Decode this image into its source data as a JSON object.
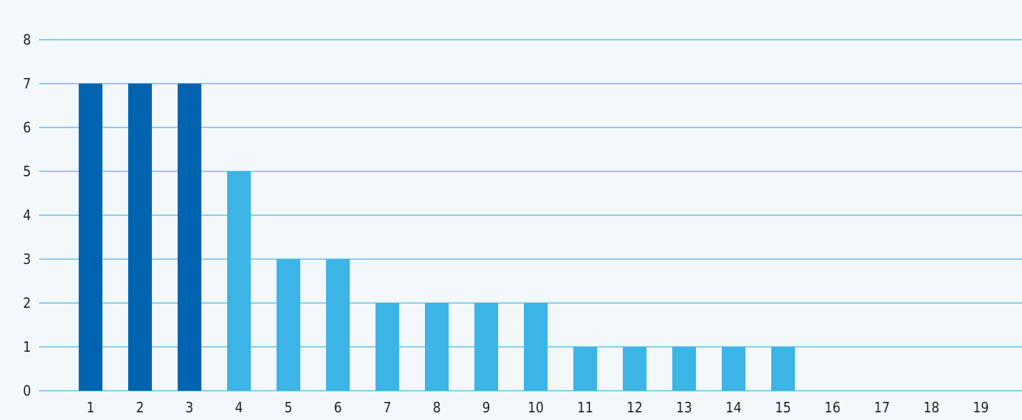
{
  "chart_data": {
    "type": "bar",
    "categories": [
      "1",
      "2",
      "3",
      "4",
      "5",
      "6",
      "7",
      "8",
      "9",
      "10",
      "11",
      "12",
      "13",
      "14",
      "15",
      "16",
      "17",
      "18",
      "19"
    ],
    "values": [
      7,
      7,
      7,
      5,
      3,
      3,
      2,
      2,
      2,
      2,
      1,
      1,
      1,
      1,
      1,
      0,
      0,
      0,
      0
    ],
    "highlight_indices": [
      0,
      1,
      2
    ],
    "title": "",
    "xlabel": "",
    "ylabel": "",
    "ylim": [
      0,
      8
    ],
    "yticks": [
      "0",
      "1",
      "2",
      "3",
      "4",
      "5",
      "6",
      "7",
      "8"
    ],
    "grid": true,
    "colors": {
      "background": "#f3f8fb",
      "gridline": "#3fb3e3",
      "bar": "#3db4e6",
      "bar_highlight": "#0064b0",
      "text": "#222222"
    }
  }
}
